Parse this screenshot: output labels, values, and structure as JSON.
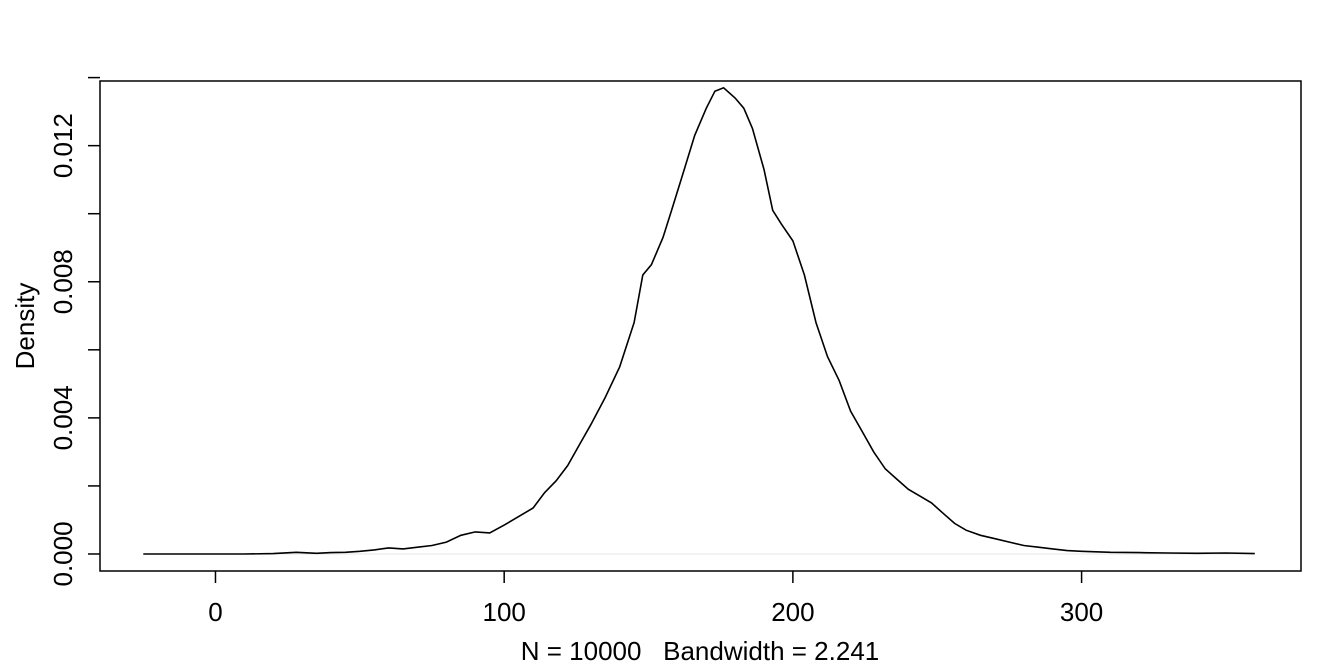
{
  "chart_data": {
    "type": "line",
    "title": "",
    "xlabel": "N = 10000   Bandwidth = 2.241",
    "ylabel": "Density",
    "xlim": [
      -40,
      376
    ],
    "ylim": [
      -0.0005,
      0.0139
    ],
    "x_ticks": [
      0,
      100,
      200,
      300
    ],
    "x_tick_labels": [
      "0",
      "100",
      "200",
      "300"
    ],
    "y_ticks": [
      0.0,
      0.002,
      0.004,
      0.006,
      0.008,
      0.01,
      0.012,
      0.014
    ],
    "y_tick_labels": [
      "0.000",
      "",
      "0.004",
      "",
      "0.008",
      "",
      "0.012",
      ""
    ],
    "grid": false,
    "legend": "none",
    "baseline": 0,
    "series": [
      {
        "x": [
          -25,
          -10,
          0,
          10,
          20,
          28,
          35,
          40,
          45,
          50,
          55,
          60,
          65,
          70,
          75,
          80,
          85,
          90,
          95,
          100,
          105,
          110,
          114,
          118,
          122,
          126,
          130,
          135,
          140,
          145,
          148,
          151,
          155,
          158,
          162,
          166,
          170,
          173,
          176,
          180,
          183,
          186,
          190,
          193,
          196,
          200,
          204,
          208,
          212,
          216,
          220,
          224,
          228,
          232,
          236,
          240,
          244,
          248,
          252,
          256,
          260,
          265,
          270,
          275,
          280,
          285,
          290,
          295,
          300,
          310,
          320,
          330,
          340,
          350,
          360
        ],
        "y": [
          0.0,
          0.0,
          0.0,
          0.0,
          1e-05,
          5e-05,
          2e-05,
          4e-05,
          5e-05,
          8e-05,
          0.00012,
          0.00018,
          0.00015,
          0.0002,
          0.00025,
          0.00035,
          0.00055,
          0.00065,
          0.00062,
          0.00085,
          0.0011,
          0.00135,
          0.0018,
          0.00215,
          0.0026,
          0.0032,
          0.0038,
          0.0046,
          0.0055,
          0.0068,
          0.0082,
          0.0085,
          0.0093,
          0.0101,
          0.0112,
          0.0123,
          0.0131,
          0.0136,
          0.0137,
          0.0134,
          0.0131,
          0.0125,
          0.0113,
          0.0101,
          0.0097,
          0.0092,
          0.0082,
          0.0068,
          0.0058,
          0.0051,
          0.0042,
          0.0036,
          0.003,
          0.0025,
          0.0022,
          0.0019,
          0.0017,
          0.0015,
          0.0012,
          0.0009,
          0.0007,
          0.00055,
          0.00045,
          0.00035,
          0.00025,
          0.0002,
          0.00015,
          0.0001,
          8e-05,
          5e-05,
          4e-05,
          3e-05,
          2e-05,
          3e-05,
          1e-05
        ]
      }
    ]
  }
}
